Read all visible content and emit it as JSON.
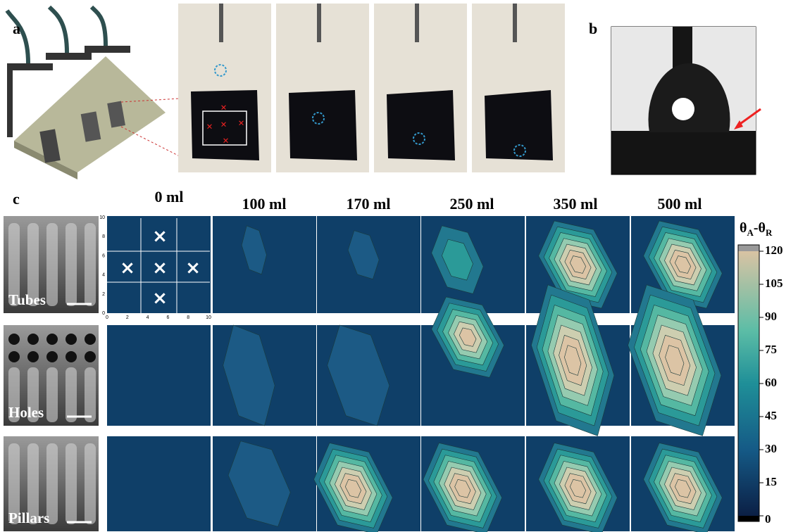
{
  "panels": {
    "a": "a",
    "b": "b",
    "c": "c"
  },
  "columns": [
    "0 ml",
    "100 ml",
    "170 ml",
    "250 ml",
    "350 ml",
    "500 ml"
  ],
  "rows": [
    "Tubes",
    "Holes",
    "Pillars"
  ],
  "inset_axes": {
    "xticks": [
      0,
      2,
      4,
      6,
      8,
      10
    ],
    "yticks": [
      0,
      2,
      4,
      6,
      8,
      10
    ]
  },
  "colorbar": {
    "title": {
      "symbol1": "θ",
      "sub1": "A",
      "symbol2": "-θ",
      "sub2": "R"
    },
    "lim": [
      0,
      120
    ],
    "ticks": [
      0,
      15,
      30,
      45,
      60,
      75,
      90,
      105,
      120
    ]
  }
}
